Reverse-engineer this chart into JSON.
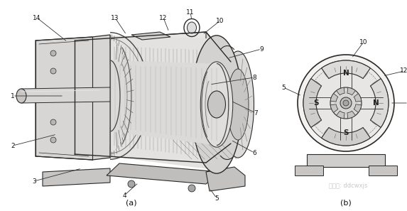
{
  "bg_color": "#ffffff",
  "line_color": "#2a2a2a",
  "title_a": "(a)",
  "title_b": "(b)",
  "watermark": "微信号: ddcwxjs",
  "figsize": [
    5.73,
    2.97
  ],
  "dpi": 100
}
